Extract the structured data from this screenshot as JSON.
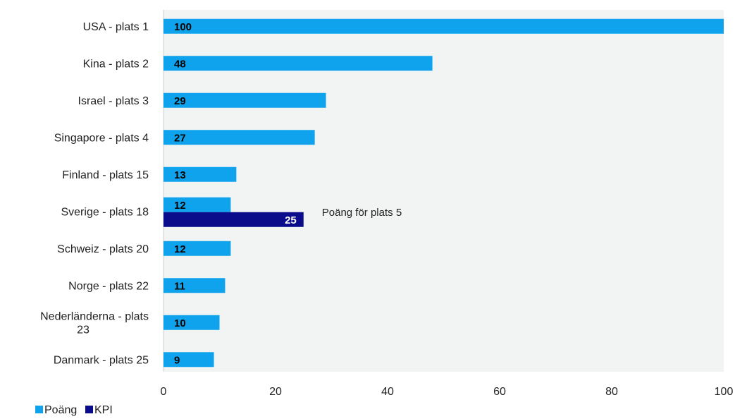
{
  "chart_data": {
    "type": "bar",
    "orientation": "horizontal",
    "categories": [
      [
        "USA - plats 1"
      ],
      [
        "Kina - plats 2"
      ],
      [
        "Israel - plats 3"
      ],
      [
        "Singapore - plats 4"
      ],
      [
        "Finland - plats 15"
      ],
      [
        "Sverige - plats 18"
      ],
      [
        "Schweiz - plats 20"
      ],
      [
        "Norge - plats 22"
      ],
      [
        "Nederländerna - plats",
        "23"
      ],
      [
        "Danmark - plats 25"
      ]
    ],
    "series": [
      {
        "name": "Poäng",
        "color": "#0fa3ed",
        "label_color": "#000000",
        "values": [
          100,
          48,
          29,
          27,
          13,
          12,
          12,
          11,
          10,
          9
        ],
        "labels": [
          "100",
          "48",
          "29",
          "27",
          "13",
          "12",
          "12",
          "11",
          "10",
          "9"
        ]
      },
      {
        "name": "KPI",
        "color": "#0b0c8c",
        "label_color": "#ffffff",
        "values": [
          null,
          null,
          null,
          null,
          null,
          25,
          null,
          null,
          null,
          null
        ],
        "labels": [
          null,
          null,
          null,
          null,
          null,
          "25",
          null,
          null,
          null,
          null
        ]
      }
    ],
    "annotations": [
      {
        "category_index": 5,
        "series": "KPI",
        "text": "Poäng för plats 5"
      }
    ],
    "xlim": [
      0,
      100
    ],
    "xticks": [
      0,
      20,
      40,
      60,
      80,
      100
    ],
    "xtick_labels": [
      "0",
      "20",
      "40",
      "60",
      "80",
      "100"
    ],
    "xlabel": "",
    "ylabel": "",
    "title": "",
    "grid": false,
    "legend_position": "bottom-left",
    "plot_background": "#f2f4f4"
  }
}
